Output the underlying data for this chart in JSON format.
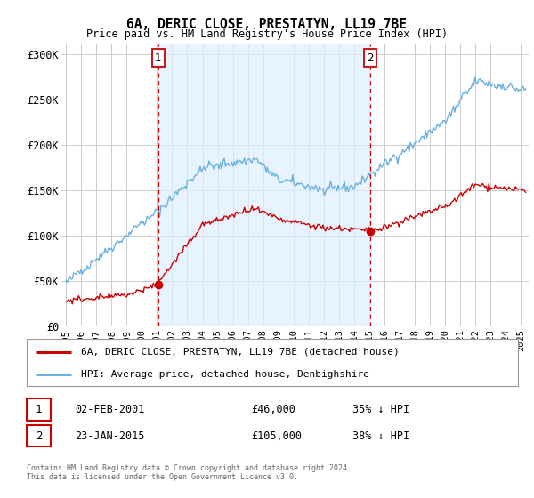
{
  "title": "6A, DERIC CLOSE, PRESTATYN, LL19 7BE",
  "subtitle": "Price paid vs. HM Land Registry's House Price Index (HPI)",
  "ylim": [
    0,
    310000
  ],
  "xlim_start": 1994.7,
  "xlim_end": 2025.5,
  "marker1_x": 2001.09,
  "marker1_y": 46000,
  "marker2_x": 2015.06,
  "marker2_y": 105000,
  "marker1_label": "02-FEB-2001",
  "marker1_price": "£46,000",
  "marker1_note": "35% ↓ HPI",
  "marker2_label": "23-JAN-2015",
  "marker2_price": "£105,000",
  "marker2_note": "38% ↓ HPI",
  "legend_line1": "6A, DERIC CLOSE, PRESTATYN, LL19 7BE (detached house)",
  "legend_line2": "HPI: Average price, detached house, Denbighshire",
  "footer1": "Contains HM Land Registry data © Crown copyright and database right 2024.",
  "footer2": "This data is licensed under the Open Government Licence v3.0.",
  "red_color": "#cc0000",
  "blue_color": "#6ab0e0",
  "shade_color": "#ddeeff",
  "bg_color": "#ffffff",
  "grid_color": "#cccccc"
}
